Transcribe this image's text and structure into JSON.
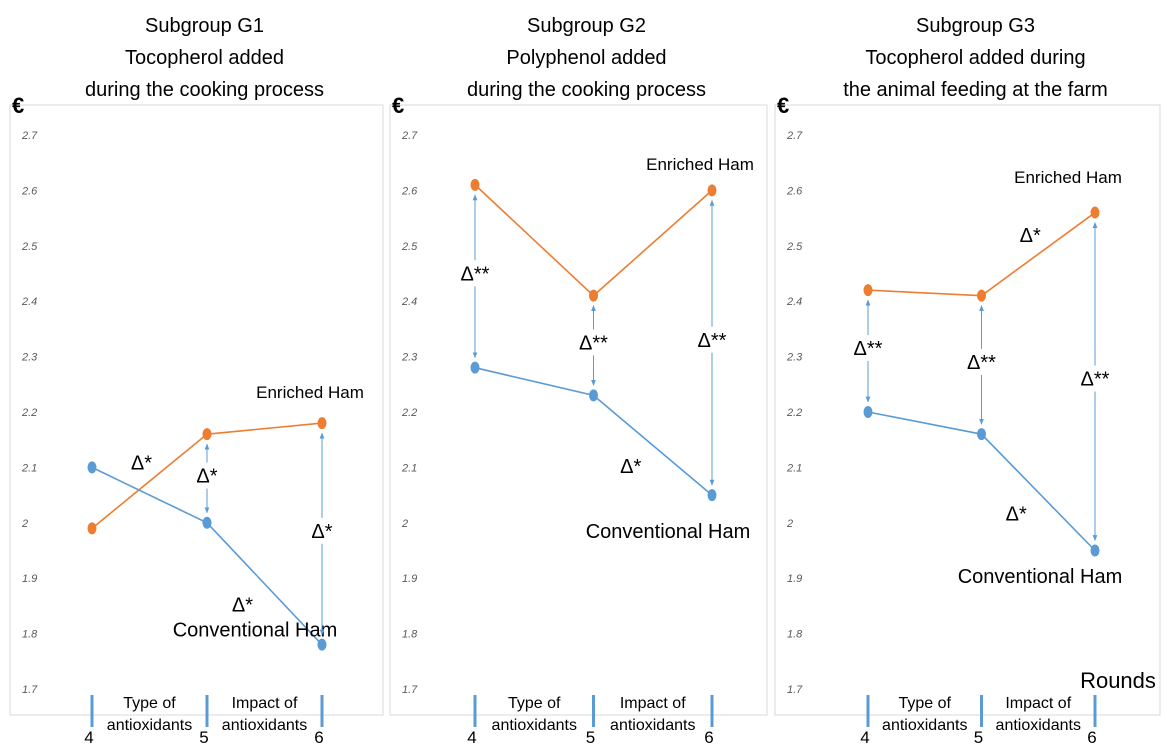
{
  "x_axis_label": "Rounds",
  "currency_symbol": "€",
  "colors": {
    "conventional": "#5B9BD5",
    "enriched": "#ED7D31",
    "arrow": "#5B9BD5",
    "axis_text": "#595959"
  },
  "chart_data": [
    {
      "type": "line",
      "title": [
        "Subgroup G1",
        "Tocopherol added",
        "during the cooking process"
      ],
      "ylabel": "€",
      "ylim": [
        1.7,
        2.7
      ],
      "y_ticks": [
        "1.7",
        "1.8",
        "1.9",
        "2",
        "2.1",
        "2.2",
        "2.3",
        "2.4",
        "2.5",
        "2.6",
        "2.7"
      ],
      "x": [
        4,
        5,
        6
      ],
      "x_tick_labels": [
        "4",
        "5",
        "6"
      ],
      "phase_labels": [
        [
          "Type of",
          "antioxidants"
        ],
        [
          "Impact of",
          "antioxidants"
        ]
      ],
      "series": [
        {
          "name": "Enriched Ham",
          "key": "enriched",
          "values": [
            1.99,
            2.16,
            2.18
          ]
        },
        {
          "name": "Conventional Ham",
          "key": "conventional",
          "values": [
            2.1,
            2.0,
            1.78
          ]
        }
      ],
      "annotations": [
        {
          "text": "Δ*",
          "kind": "line",
          "at": 4.5
        },
        {
          "text": "Δ*",
          "kind": "gap",
          "at": 5
        },
        {
          "text": "Δ*",
          "kind": "gap",
          "at": 6
        },
        {
          "text": "Δ*",
          "kind": "line",
          "at": 5.5
        }
      ]
    },
    {
      "type": "line",
      "title": [
        "Subgroup G2",
        "Polyphenol added",
        "during the cooking process"
      ],
      "ylabel": "€",
      "ylim": [
        1.7,
        2.7
      ],
      "y_ticks": [
        "1.7",
        "1.8",
        "1.9",
        "2",
        "2.1",
        "2.2",
        "2.3",
        "2.4",
        "2.5",
        "2.6",
        "2.7"
      ],
      "x": [
        4,
        5,
        6
      ],
      "x_tick_labels": [
        "4",
        "5",
        "6"
      ],
      "phase_labels": [
        [
          "Type of",
          "antioxidants"
        ],
        [
          "Impact of",
          "antioxidants"
        ]
      ],
      "series": [
        {
          "name": "Enriched Ham",
          "key": "enriched",
          "values": [
            2.61,
            2.41,
            2.6
          ]
        },
        {
          "name": "Conventional Ham",
          "key": "conventional",
          "values": [
            2.28,
            2.23,
            2.05
          ]
        }
      ],
      "annotations": [
        {
          "text": "Δ**",
          "kind": "gap",
          "at": 4
        },
        {
          "text": "Δ**",
          "kind": "gap",
          "at": 5
        },
        {
          "text": "Δ**",
          "kind": "gap",
          "at": 6
        },
        {
          "text": "Δ*",
          "kind": "line",
          "at": 5.5
        }
      ]
    },
    {
      "type": "line",
      "title": [
        "Subgroup G3",
        "Tocopherol added during",
        "the animal feeding at the farm"
      ],
      "ylabel": "€",
      "ylim": [
        1.7,
        2.7
      ],
      "y_ticks": [
        "1.7",
        "1.8",
        "1.9",
        "2",
        "2.1",
        "2.2",
        "2.3",
        "2.4",
        "2.5",
        "2.6",
        "2.7"
      ],
      "x": [
        4,
        5,
        6
      ],
      "x_tick_labels": [
        "4",
        "5",
        "6"
      ],
      "phase_labels": [
        [
          "Type of",
          "antioxidants"
        ],
        [
          "Impact of",
          "antioxidants"
        ]
      ],
      "series": [
        {
          "name": "Enriched Ham",
          "key": "enriched",
          "values": [
            2.42,
            2.41,
            2.56
          ]
        },
        {
          "name": "Conventional Ham",
          "key": "conventional",
          "values": [
            2.2,
            2.16,
            1.95
          ]
        }
      ],
      "annotations": [
        {
          "text": "Δ*",
          "kind": "line",
          "at": 5.5
        },
        {
          "text": "Δ**",
          "kind": "gap",
          "at": 4
        },
        {
          "text": "Δ**",
          "kind": "gap",
          "at": 5
        },
        {
          "text": "Δ**",
          "kind": "gap",
          "at": 6
        },
        {
          "text": "Δ*",
          "kind": "line",
          "at": 5.5
        }
      ]
    }
  ]
}
